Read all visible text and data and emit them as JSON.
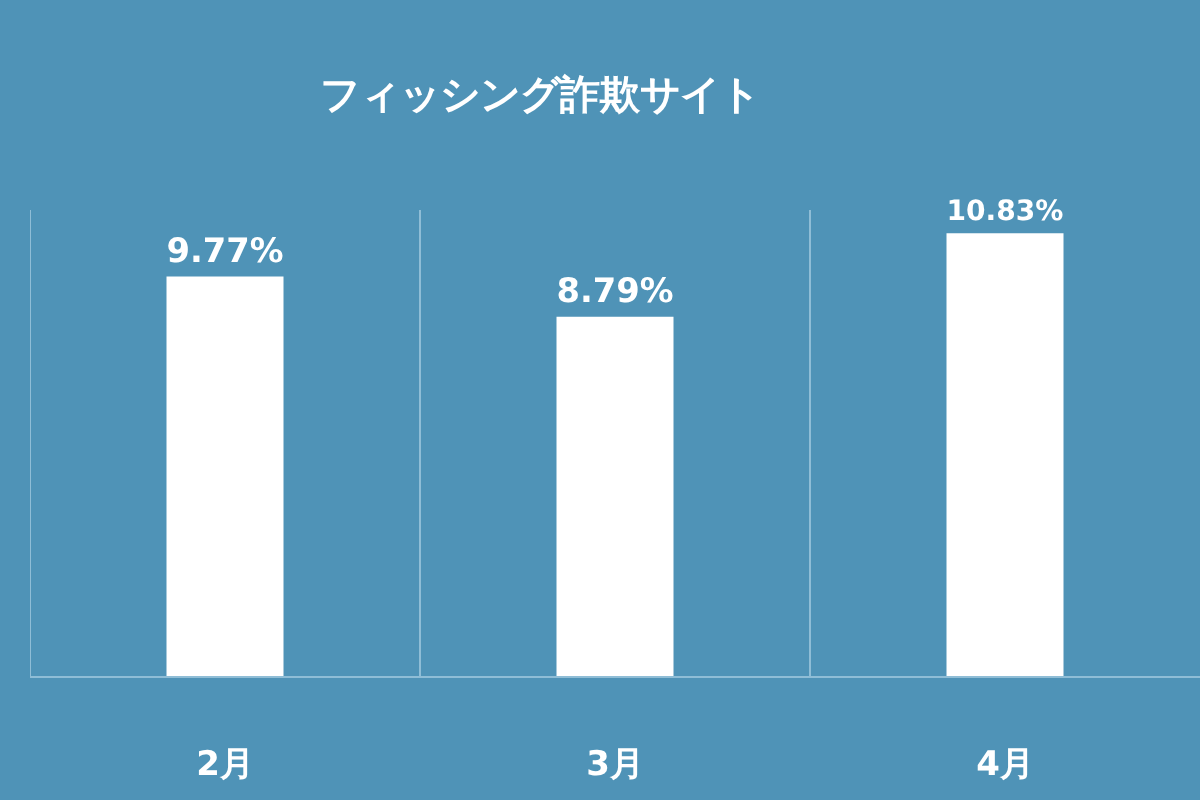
{
  "chart_data": {
    "type": "bar",
    "title": "フィッシング詐欺サイト",
    "categories": [
      "2月",
      "3月",
      "4月"
    ],
    "values": [
      9.77,
      8.79,
      10.83
    ],
    "value_labels": [
      "9.77%",
      "8.79%",
      "10.83%"
    ],
    "color": "#ffffff",
    "grid": "x",
    "legend": false
  }
}
